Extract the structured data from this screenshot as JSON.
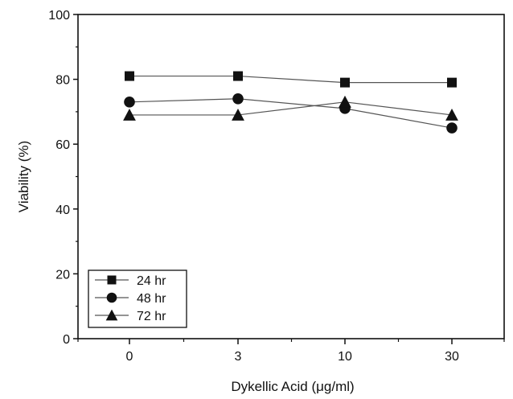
{
  "chart_data": {
    "type": "line",
    "categories": [
      "0",
      "3",
      "10",
      "30"
    ],
    "xlabel": "Dykellic Acid (μg/ml)",
    "ylabel": "Viability (%)",
    "ylim": [
      0,
      100
    ],
    "yticks": [
      "0",
      "20",
      "40",
      "60",
      "80",
      "100"
    ],
    "grid": false,
    "legend_position": "bottom-left",
    "series": [
      {
        "name": "24 hr",
        "marker": "square",
        "values": [
          81,
          81,
          79,
          79
        ]
      },
      {
        "name": "48 hr",
        "marker": "circle",
        "values": [
          73,
          74,
          71,
          65
        ]
      },
      {
        "name": "72 hr",
        "marker": "triangle",
        "values": [
          69,
          69,
          73,
          69
        ]
      }
    ],
    "colors": {
      "line": "#555555",
      "marker": "#111111",
      "axis": "#111111"
    }
  }
}
